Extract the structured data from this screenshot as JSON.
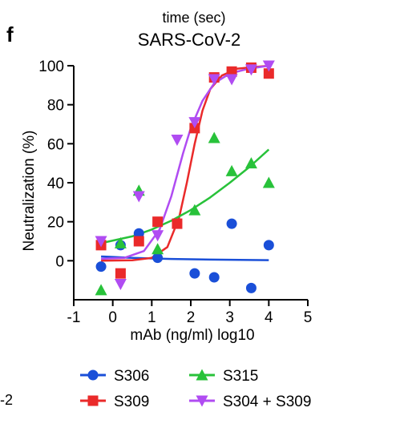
{
  "figure": {
    "top_clip_text": "time (sec)",
    "panel_letter": "f",
    "left_edge_fragment": "-2"
  },
  "chart_data": {
    "type": "scatter",
    "title": "SARS-CoV-2",
    "xlabel": "mAb (ng/ml) log10",
    "ylabel": "Neutralization (%)",
    "xlim": [
      -1,
      5
    ],
    "ylim": [
      -20,
      100
    ],
    "x_ticks": [
      -1,
      0,
      1,
      2,
      3,
      4,
      5
    ],
    "y_ticks": [
      0,
      20,
      40,
      60,
      80,
      100
    ],
    "grid": false,
    "legend_position": "bottom",
    "series": [
      {
        "name": "S306",
        "color": "#1a4fd8",
        "marker": "circle",
        "points": [
          [
            -0.3,
            -3
          ],
          [
            0.2,
            8
          ],
          [
            0.67,
            14
          ],
          [
            1.15,
            1.5
          ],
          [
            2.1,
            -6.5
          ],
          [
            2.6,
            -8.5
          ],
          [
            3.05,
            19
          ],
          [
            3.55,
            -14
          ],
          [
            4.0,
            8
          ]
        ],
        "curve": [
          [
            -0.3,
            2.2
          ],
          [
            0.5,
            1.5
          ],
          [
            1.5,
            0.9
          ],
          [
            2.5,
            0.6
          ],
          [
            4.0,
            0.3
          ]
        ]
      },
      {
        "name": "S309",
        "color": "#ea2a2a",
        "marker": "square",
        "points": [
          [
            -0.3,
            8
          ],
          [
            0.2,
            -6.5
          ],
          [
            0.67,
            10
          ],
          [
            1.15,
            20
          ],
          [
            1.65,
            19
          ],
          [
            2.1,
            68
          ],
          [
            2.6,
            94
          ],
          [
            3.05,
            97
          ],
          [
            3.55,
            99
          ],
          [
            4.0,
            96
          ]
        ],
        "curve": [
          [
            -0.3,
            0
          ],
          [
            0.5,
            0.2
          ],
          [
            1.0,
            1.5
          ],
          [
            1.4,
            7
          ],
          [
            1.7,
            22
          ],
          [
            1.9,
            40
          ],
          [
            2.1,
            60
          ],
          [
            2.3,
            77
          ],
          [
            2.5,
            88
          ],
          [
            2.8,
            95
          ],
          [
            3.2,
            98.5
          ],
          [
            4.0,
            100
          ]
        ]
      },
      {
        "name": "S315",
        "color": "#28c23a",
        "marker": "triangle-up",
        "points": [
          [
            -0.3,
            -15
          ],
          [
            0.2,
            9
          ],
          [
            0.67,
            36
          ],
          [
            1.15,
            6
          ],
          [
            2.1,
            26
          ],
          [
            2.6,
            63
          ],
          [
            3.05,
            46
          ],
          [
            3.55,
            50
          ],
          [
            4.0,
            40
          ]
        ],
        "curve": [
          [
            -0.3,
            9
          ],
          [
            0.5,
            12.5
          ],
          [
            1.0,
            16
          ],
          [
            1.5,
            20.5
          ],
          [
            2.0,
            26
          ],
          [
            2.5,
            32.5
          ],
          [
            3.0,
            40
          ],
          [
            3.5,
            48
          ],
          [
            4.0,
            57
          ]
        ]
      },
      {
        "name": "S304 + S309",
        "color": "#b04cf2",
        "marker": "triangle-down",
        "points": [
          [
            -0.3,
            10
          ],
          [
            0.2,
            -12
          ],
          [
            0.67,
            33
          ],
          [
            1.15,
            13
          ],
          [
            1.65,
            62
          ],
          [
            2.1,
            71
          ],
          [
            2.6,
            93
          ],
          [
            3.05,
            93
          ],
          [
            3.55,
            98
          ],
          [
            4.0,
            100
          ]
        ],
        "curve": [
          [
            -0.3,
            1
          ],
          [
            0.3,
            1.5
          ],
          [
            0.8,
            5
          ],
          [
            1.2,
            16
          ],
          [
            1.5,
            33
          ],
          [
            1.8,
            55
          ],
          [
            2.0,
            68
          ],
          [
            2.3,
            82
          ],
          [
            2.6,
            91
          ],
          [
            3.0,
            96
          ],
          [
            3.5,
            98.5
          ],
          [
            4.0,
            100
          ]
        ]
      }
    ]
  }
}
